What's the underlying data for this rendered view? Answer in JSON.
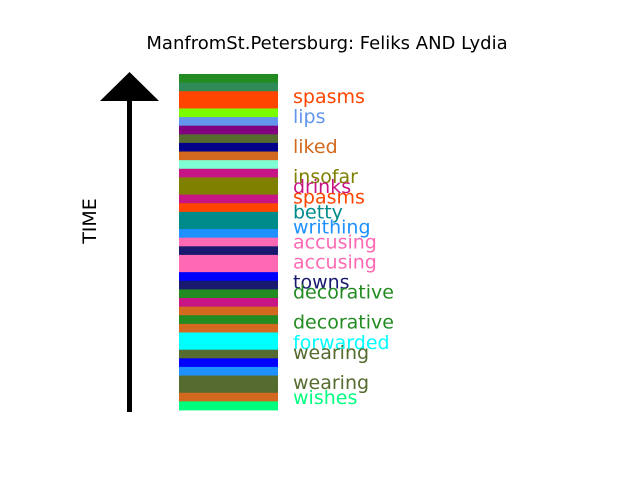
{
  "chart_data": {
    "type": "bar",
    "title": "ManfromSt.Petersburg: Feliks AND Lydia",
    "ylabel": "TIME",
    "stripes": [
      "#228b22",
      "#2e8b57",
      "#ff4500",
      "#ff4500",
      "#7cfc00",
      "#6495ed",
      "#800080",
      "#556b2f",
      "#00008b",
      "#d2691e",
      "#7fffd4",
      "#c71585",
      "#808000",
      "#808000",
      "#c71585",
      "#ff4500",
      "#008b8b",
      "#008b8b",
      "#1e90ff",
      "#ff69b4",
      "#191970",
      "#ff69b4",
      "#ff69b4",
      "#0000ff",
      "#191970",
      "#228b22",
      "#c71585",
      "#d2691e",
      "#228b22",
      "#d2691e",
      "#00ffff",
      "#00ffff",
      "#556b2f",
      "#0000ff",
      "#1e90ff",
      "#556b2f",
      "#556b2f",
      "#d2691e",
      "#00ff7f"
    ],
    "labels": [
      {
        "text": "spasms",
        "color": "#ff4500",
        "pos": 0.066
      },
      {
        "text": "lips",
        "color": "#6495ed",
        "pos": 0.125
      },
      {
        "text": "liked",
        "color": "#d2691e",
        "pos": 0.215
      },
      {
        "text": "insofar",
        "color": "#808000",
        "pos": 0.304
      },
      {
        "text": "drinks",
        "color": "#c71585",
        "pos": 0.334
      },
      {
        "text": "spasms",
        "color": "#ff4500",
        "pos": 0.364
      },
      {
        "text": "betty",
        "color": "#008b8b",
        "pos": 0.409
      },
      {
        "text": "writhing",
        "color": "#1e90ff",
        "pos": 0.454
      },
      {
        "text": "accusing",
        "color": "#ff69b4",
        "pos": 0.498
      },
      {
        "text": "accusing",
        "color": "#ff69b4",
        "pos": 0.558
      },
      {
        "text": "towns",
        "color": "#191970",
        "pos": 0.618
      },
      {
        "text": "decorative",
        "color": "#228b22",
        "pos": 0.648
      },
      {
        "text": "decorative",
        "color": "#228b22",
        "pos": 0.737
      },
      {
        "text": "forwarded",
        "color": "#00ffff",
        "pos": 0.797
      },
      {
        "text": "wearing",
        "color": "#556b2f",
        "pos": 0.827
      },
      {
        "text": "wearing",
        "color": "#556b2f",
        "pos": 0.916
      },
      {
        "text": "wishes",
        "color": "#00ff7f",
        "pos": 0.961
      }
    ]
  }
}
